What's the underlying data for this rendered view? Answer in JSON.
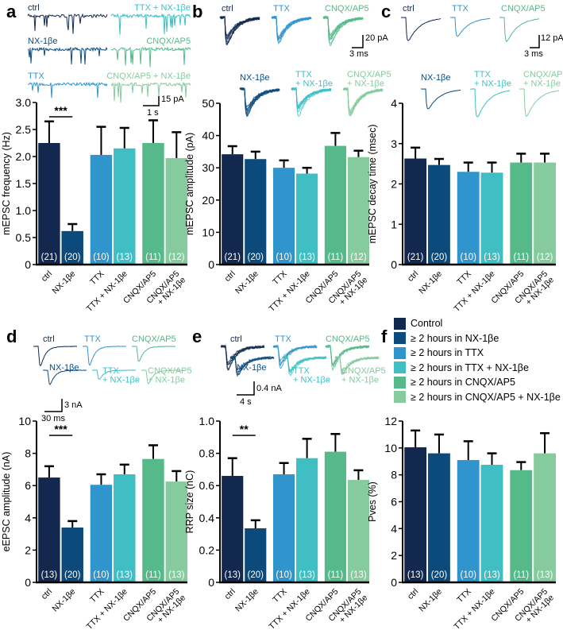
{
  "panel_letters": [
    "a",
    "b",
    "c",
    "d",
    "e",
    "f"
  ],
  "colors": [
    "#12284f",
    "#0c4a7c",
    "#2f95cc",
    "#3fbfc4",
    "#55b98a",
    "#86cb9e"
  ],
  "categories": [
    "ctrl",
    "NX-1βe",
    "TTX",
    "TTX + NX-1βe",
    "CNQX/AP5",
    "CNQX/AP5\n+ NX-1βe"
  ],
  "traces": {
    "a": {
      "labels": [
        "ctrl",
        "NX-1βe",
        "TTX",
        "TTX + NX-1βe",
        "CNQX/AP5",
        "CNQX/AP5 + NX-1βe"
      ],
      "scale_y": "15 pA",
      "scale_x": "1 s"
    },
    "b": {
      "labels": [
        "ctrl",
        "TTX",
        "CNQX/AP5",
        "NX-1βe",
        "TTX\n+ NX-1βe",
        "CNQX/AP5\n+ NX-1βe"
      ],
      "scale_y": "20 pA",
      "scale_x": "3 ms"
    },
    "c": {
      "labels": [
        "ctrl",
        "TTX",
        "CNQX/AP5",
        "NX-1βe",
        "TTX\n+ NX-1βe",
        "CNQX/AP5\n+ NX-1βe"
      ],
      "scale_y": "12 pA",
      "scale_x": "3 ms"
    },
    "d": {
      "labels": [
        "ctrl",
        "TTX",
        "CNQX/AP5",
        "NX-1βe",
        "TTX\n+ NX-1βe",
        "CNQX/AP5\n+ NX-1βe"
      ],
      "scale_y": "3 nA",
      "scale_x": "30 ms"
    },
    "e": {
      "labels": [
        "ctrl",
        "TTX",
        "CNQX/AP5",
        "NX-1βe",
        "TTX\n+ NX-1βe",
        "CNQX/AP5\n+ NX-1βe"
      ],
      "scale_y": "0.4 nA",
      "scale_x": "4 s"
    }
  },
  "legend": [
    "Control",
    "≥ 2 hours in NX-1βe",
    "≥ 2 hours in TTX",
    "≥ 2 hours in TTX + NX-1βe",
    "≥ 2 hours in CNQX/AP5",
    "≥ 2 hours in CNQX/AP5 + NX-1βe"
  ],
  "chart_data": [
    {
      "id": "a",
      "type": "bar",
      "ylabel": "mEPSC frequency (Hz)",
      "ylim": [
        0,
        3
      ],
      "yticks": [
        "0",
        "0.5",
        "1.0",
        "1.5",
        "2.0",
        "2.5",
        "3.0"
      ],
      "values": [
        2.25,
        0.62,
        2.03,
        2.15,
        2.25,
        1.97
      ],
      "errors": [
        0.4,
        0.13,
        0.52,
        0.38,
        0.42,
        0.48
      ],
      "n": [
        "(21)",
        "(20)",
        "(10)",
        "(13)",
        "(11)",
        "(12)"
      ],
      "significance": {
        "pair": [
          0,
          1
        ],
        "label": "***"
      }
    },
    {
      "id": "b",
      "type": "bar",
      "ylabel": "mEPSC amplitude (pA)",
      "ylim": [
        0,
        50
      ],
      "yticks": [
        "0",
        "10",
        "20",
        "30",
        "40",
        "50"
      ],
      "values": [
        34.2,
        32.7,
        30.0,
        28.2,
        36.8,
        33.3
      ],
      "errors": [
        2.5,
        2.3,
        2.3,
        1.8,
        4.0,
        2.0
      ],
      "n": [
        "(21)",
        "(20)",
        "(10)",
        "(13)",
        "(11)",
        "(12)"
      ]
    },
    {
      "id": "c",
      "type": "bar",
      "ylabel": "mEPSC decay time (msec)",
      "ylim": [
        0,
        4
      ],
      "yticks": [
        "0",
        "1",
        "2",
        "3",
        "4"
      ],
      "values": [
        2.63,
        2.47,
        2.3,
        2.28,
        2.53,
        2.53
      ],
      "errors": [
        0.27,
        0.15,
        0.23,
        0.25,
        0.22,
        0.22
      ],
      "n": [
        "(21)",
        "(20)",
        "(10)",
        "(13)",
        "(11)",
        "(12)"
      ]
    },
    {
      "id": "d",
      "type": "bar",
      "ylabel": "eEPSC amplitude (nA)",
      "ylim": [
        0,
        10
      ],
      "yticks": [
        "0",
        "2",
        "4",
        "6",
        "8",
        "10"
      ],
      "values": [
        6.5,
        3.4,
        6.05,
        6.7,
        7.65,
        6.25
      ],
      "errors": [
        0.7,
        0.4,
        0.65,
        0.6,
        0.85,
        0.65
      ],
      "n": [
        "(13)",
        "(20)",
        "(10)",
        "(13)",
        "(11)",
        "(13)"
      ],
      "significance": {
        "pair": [
          0,
          1
        ],
        "label": "***"
      }
    },
    {
      "id": "e",
      "type": "bar",
      "ylabel": "RRP size (nC)",
      "ylim": [
        0,
        1.0
      ],
      "yticks": [
        "0",
        "0.2",
        "0.4",
        "0.6",
        "0.8",
        "1.0"
      ],
      "values": [
        0.66,
        0.335,
        0.67,
        0.77,
        0.81,
        0.635
      ],
      "errors": [
        0.11,
        0.05,
        0.07,
        0.12,
        0.11,
        0.06
      ],
      "n": [
        "(13)",
        "(20)",
        "(10)",
        "(13)",
        "(11)",
        "(13)"
      ],
      "significance": {
        "pair": [
          0,
          1
        ],
        "label": "**"
      }
    },
    {
      "id": "f",
      "type": "bar",
      "ylabel": "Pves (%)",
      "ylim": [
        0,
        12
      ],
      "yticks": [
        "0",
        "2",
        "4",
        "6",
        "8",
        "10",
        "12"
      ],
      "values": [
        10.05,
        9.6,
        9.1,
        8.75,
        8.35,
        9.6
      ],
      "errors": [
        1.25,
        1.4,
        1.4,
        0.85,
        0.6,
        1.5
      ],
      "n": [
        "(13)",
        "(20)",
        "(10)",
        "(13)",
        "(11)",
        "(13)"
      ]
    }
  ]
}
